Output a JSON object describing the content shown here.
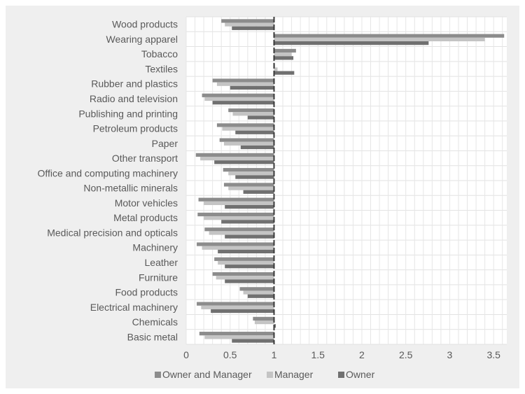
{
  "chart_data": {
    "type": "bar",
    "orientation": "horizontal",
    "title": "",
    "xlabel": "",
    "ylabel": "",
    "xlim": [
      0,
      3.65
    ],
    "x_ticks": [
      "0",
      "0.5",
      "1",
      "1.5",
      "2",
      "2.5",
      "3",
      "3.5"
    ],
    "reference_line": 1,
    "grid": true,
    "legend_position": "bottom",
    "categories": [
      "Wood products",
      "Wearing apparel",
      "Tobacco",
      "Textiles",
      "Rubber and plastics",
      "Radio and television",
      "Publishing and printing",
      "Petroleum products",
      "Paper",
      "Other transport",
      "Office and computing machinery",
      "Non-metallic minerals",
      "Motor vehicles",
      "Metal products",
      "Medical precision and opticals",
      "Machinery",
      "Leather",
      "Furniture",
      "Food products",
      "Electrical machinery",
      "Chemicals",
      "Basic metal"
    ],
    "series": [
      {
        "name": "Owner and Manager",
        "color": "#8c8c8c",
        "values": [
          0.4,
          3.62,
          1.25,
          1.01,
          0.3,
          0.18,
          0.48,
          0.35,
          0.38,
          0.11,
          0.42,
          0.43,
          0.14,
          0.13,
          0.21,
          0.12,
          0.32,
          0.3,
          0.61,
          0.12,
          0.76,
          0.15
        ]
      },
      {
        "name": "Manager",
        "color": "#c4c4c4",
        "values": [
          0.44,
          3.4,
          1.2,
          1.04,
          0.35,
          0.21,
          0.53,
          0.41,
          0.43,
          0.16,
          0.48,
          0.48,
          0.2,
          0.2,
          0.26,
          0.18,
          0.36,
          0.34,
          0.65,
          0.17,
          0.78,
          0.21
        ]
      },
      {
        "name": "Owner",
        "color": "#707070",
        "values": [
          0.52,
          2.76,
          1.22,
          1.23,
          0.5,
          0.3,
          0.7,
          0.56,
          0.62,
          0.32,
          0.56,
          0.65,
          0.44,
          0.4,
          0.44,
          0.36,
          0.44,
          0.44,
          0.7,
          0.28,
          1.02,
          0.52
        ]
      }
    ]
  }
}
